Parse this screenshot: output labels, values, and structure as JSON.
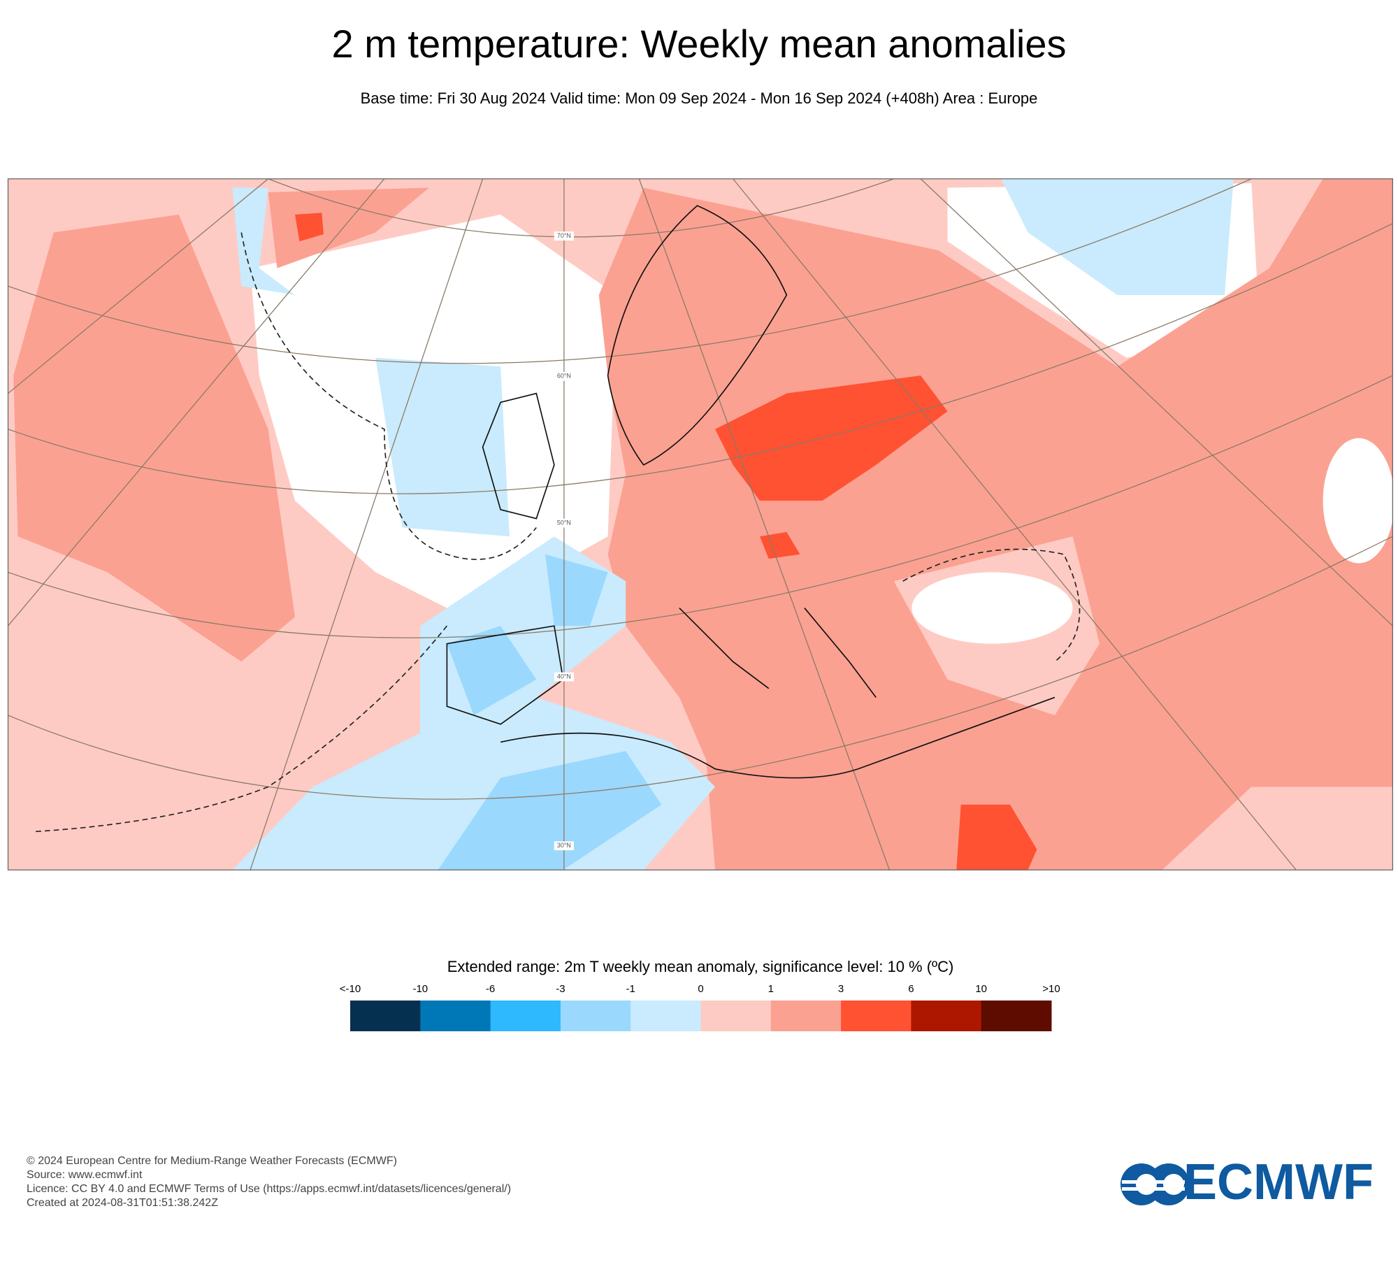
{
  "title": "2 m temperature: Weekly mean anomalies",
  "subtitle": "Base time: Fri 30 Aug 2024 Valid time: Mon 09 Sep 2024 - Mon 16 Sep 2024 (+408h) Area : Europe",
  "map": {
    "lat_labels": [
      "70°N",
      "60°N",
      "50°N",
      "40°N",
      "30°N"
    ]
  },
  "legend": {
    "title": "Extended range: 2m T weekly mean anomaly, significance level: 10 % (ºC)",
    "labels": [
      "<-10",
      "-10",
      "-6",
      "-3",
      "-1",
      "0",
      "1",
      "3",
      "6",
      "10",
      ">10"
    ],
    "colors": [
      "#053050",
      "#0077b6",
      "#2eb8fe",
      "#9bd8fd",
      "#c9ebfd",
      "#fecbc4",
      "#fba192",
      "#fe5233",
      "#ad1700",
      "#5e0c00"
    ]
  },
  "footer": {
    "lines": [
      "© 2024 European Centre for Medium-Range Weather Forecasts (ECMWF)",
      "Source: www.ecmwf.int",
      "Licence: CC BY 4.0 and ECMWF Terms of Use (https://apps.ecmwf.int/datasets/licences/general/)",
      "Created at 2024-08-31T01:51:38.242Z"
    ]
  },
  "logo": {
    "text": "ECMWF"
  }
}
